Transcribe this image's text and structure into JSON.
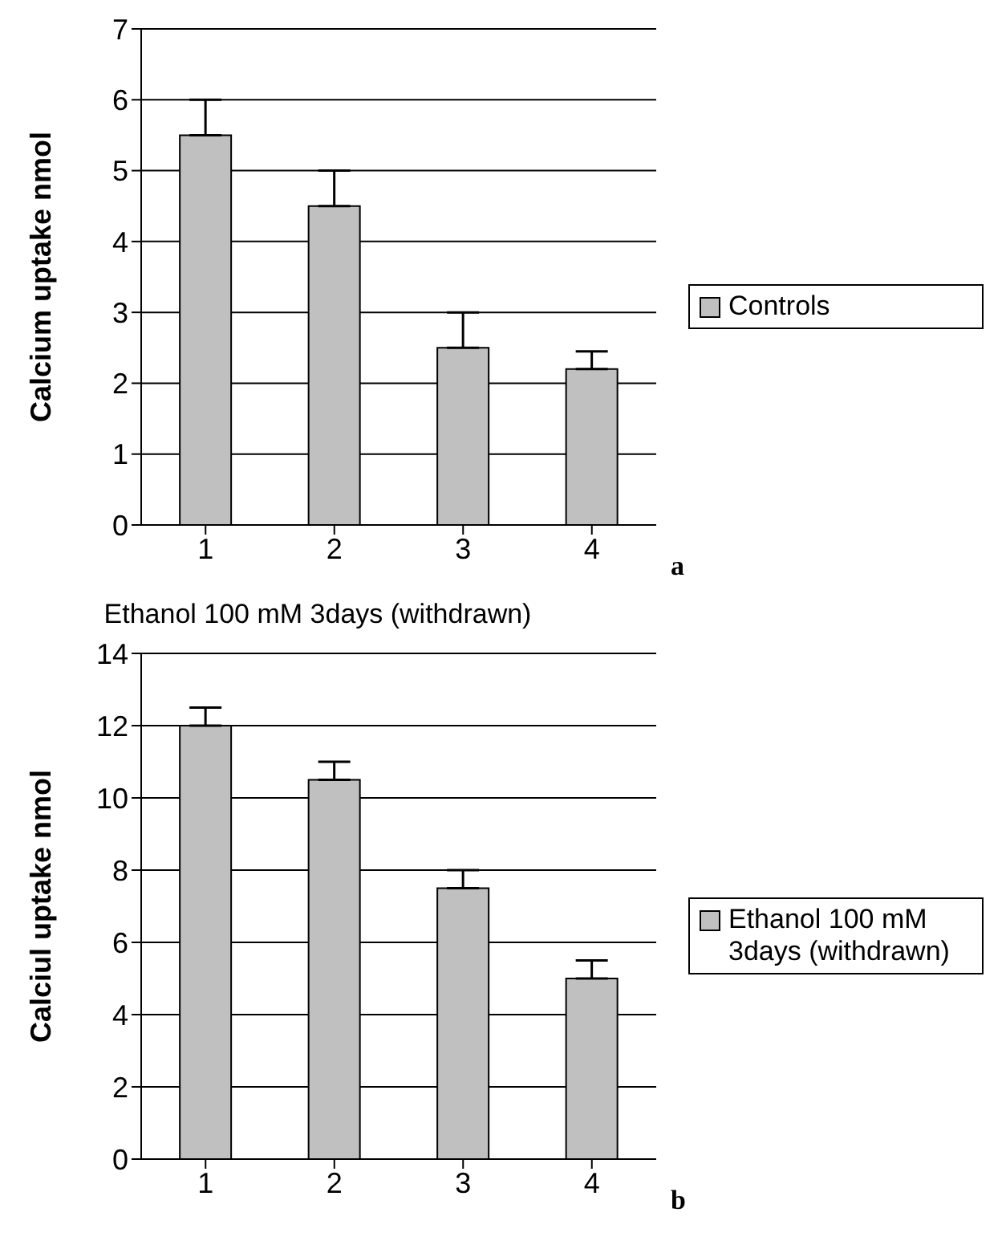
{
  "chart_data": [
    {
      "type": "bar",
      "ylabel": "Calcium uptake nmol",
      "categories": [
        "1",
        "2",
        "3",
        "4"
      ],
      "series": [
        {
          "name": "Controls",
          "color": "#c0c0c0",
          "values": [
            5.5,
            4.5,
            2.5,
            2.2
          ],
          "errors": [
            [
              5.5,
              6.0
            ],
            [
              4.5,
              5.0
            ],
            [
              2.5,
              3.0
            ],
            [
              2.2,
              2.45
            ]
          ]
        }
      ],
      "ylim": [
        0,
        7
      ],
      "yticks": [
        0,
        1,
        2,
        3,
        4,
        5,
        6,
        7
      ],
      "grid": "y",
      "legend": "right",
      "annotations": [
        "a"
      ]
    },
    {
      "type": "bar",
      "title": "Ethanol 100 mM 3days (withdrawn)",
      "ylabel": "Calciul uptake nmol",
      "categories": [
        "1",
        "2",
        "3",
        "4"
      ],
      "series": [
        {
          "name": "Ethanol 100 mM 3days (withdrawn)",
          "color": "#c0c0c0",
          "values": [
            12,
            10.5,
            7.5,
            5
          ],
          "errors": [
            [
              12,
              12.5
            ],
            [
              10.5,
              11
            ],
            [
              7.5,
              8
            ],
            [
              5,
              5.5
            ]
          ]
        }
      ],
      "ylim": [
        0,
        14
      ],
      "yticks": [
        0,
        2,
        4,
        6,
        8,
        10,
        12,
        14
      ],
      "grid": "y",
      "legend": "right",
      "annotations": [
        "b"
      ]
    }
  ]
}
